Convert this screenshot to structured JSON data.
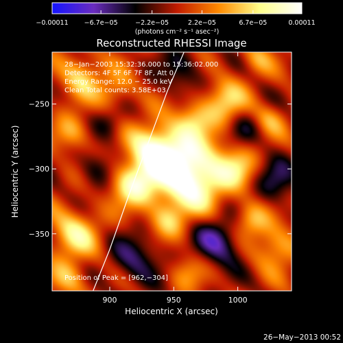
{
  "colorbar": {
    "ticks": [
      {
        "value": -0.00011,
        "label": "−0.00011"
      },
      {
        "value": -6.7e-05,
        "label": "−6.7e−05"
      },
      {
        "value": -2.2e-05,
        "label": "−2.2e−05"
      },
      {
        "value": 2.2e-05,
        "label": "2.2e−05"
      },
      {
        "value": 6.7e-05,
        "label": "6.7e−05"
      },
      {
        "value": 0.00011,
        "label": "0.00011"
      }
    ],
    "range": [
      -0.00011,
      0.00011
    ],
    "units": "(photons cm⁻² s⁻¹ asec⁻²)",
    "colors": [
      "#1414ff",
      "#6a2cbf",
      "#000000",
      "#c11b00",
      "#ff8a00",
      "#ffff8c",
      "#ffffff"
    ]
  },
  "chart_data": {
    "type": "heatmap",
    "title": "Reconstructed RHESSI Image",
    "xlabel": "Heliocentric X (arcsec)",
    "ylabel": "Heliocentric Y (arcsec)",
    "xlim": [
      855,
      1042
    ],
    "ylim": [
      -394,
      -210
    ],
    "xticks": [
      {
        "value": 900,
        "label": "900"
      },
      {
        "value": 950,
        "label": "950"
      },
      {
        "value": 1000,
        "label": "1000"
      }
    ],
    "yticks": [
      {
        "value": -250,
        "label": "−250"
      },
      {
        "value": -300,
        "label": "−300"
      },
      {
        "value": -350,
        "label": "−350"
      }
    ],
    "annotations": [
      "28−Jan−2003 15:32:36.000 to 15:36:02.000",
      "Detectors: 4F 5F 6F 7F 8F, Att 0",
      "Energy Range: 12.0 − 25.0 keV",
      "Clean     Total counts: 3.58E+03"
    ],
    "peak_label": "Position of Peak = [962,−304]",
    "peak": [
      962,
      -304
    ],
    "limb": [
      [
        887,
        -394
      ],
      [
        900,
        -362
      ],
      [
        915,
        -320
      ],
      [
        930,
        -280
      ],
      [
        945,
        -240
      ],
      [
        958,
        -210
      ]
    ],
    "sources": [
      {
        "x": 962,
        "y": -304,
        "amp": 1.15,
        "sigma": 20
      },
      {
        "x": 935,
        "y": -285,
        "amp": 0.85,
        "sigma": 14
      },
      {
        "x": 918,
        "y": -312,
        "amp": 0.7,
        "sigma": 12
      },
      {
        "x": 990,
        "y": -248,
        "amp": 0.55,
        "sigma": 12
      },
      {
        "x": 965,
        "y": -262,
        "amp": 0.45,
        "sigma": 10
      },
      {
        "x": 1000,
        "y": -300,
        "amp": 0.45,
        "sigma": 11
      },
      {
        "x": 878,
        "y": -228,
        "amp": 0.55,
        "sigma": 12
      },
      {
        "x": 870,
        "y": -272,
        "amp": 0.45,
        "sigma": 10
      },
      {
        "x": 872,
        "y": -350,
        "amp": 0.6,
        "sigma": 14
      },
      {
        "x": 868,
        "y": -385,
        "amp": 0.45,
        "sigma": 10
      },
      {
        "x": 1010,
        "y": -340,
        "amp": 0.5,
        "sigma": 10
      },
      {
        "x": 1030,
        "y": -360,
        "amp": 0.5,
        "sigma": 12
      },
      {
        "x": 1025,
        "y": -262,
        "amp": 0.35,
        "sigma": 9
      },
      {
        "x": 945,
        "y": -340,
        "amp": 0.4,
        "sigma": 10
      },
      {
        "x": 960,
        "y": -380,
        "amp": 0.35,
        "sigma": 10
      },
      {
        "x": 905,
        "y": -240,
        "amp": 0.4,
        "sigma": 10
      },
      {
        "x": 1015,
        "y": -215,
        "amp": 0.35,
        "sigma": 9
      },
      {
        "x": 985,
        "y": -355,
        "amp": -0.6,
        "sigma": 14
      },
      {
        "x": 920,
        "y": -370,
        "amp": -0.45,
        "sigma": 14
      },
      {
        "x": 1030,
        "y": -310,
        "amp": -0.45,
        "sigma": 12
      },
      {
        "x": 890,
        "y": -300,
        "amp": -0.35,
        "sigma": 10
      },
      {
        "x": 955,
        "y": -225,
        "amp": -0.35,
        "sigma": 12
      },
      {
        "x": 1005,
        "y": -270,
        "amp": -0.3,
        "sigma": 10
      },
      {
        "x": 900,
        "y": -265,
        "amp": -0.3,
        "sigma": 9
      }
    ]
  },
  "footer_timestamp": "26−May−2013 00:52"
}
